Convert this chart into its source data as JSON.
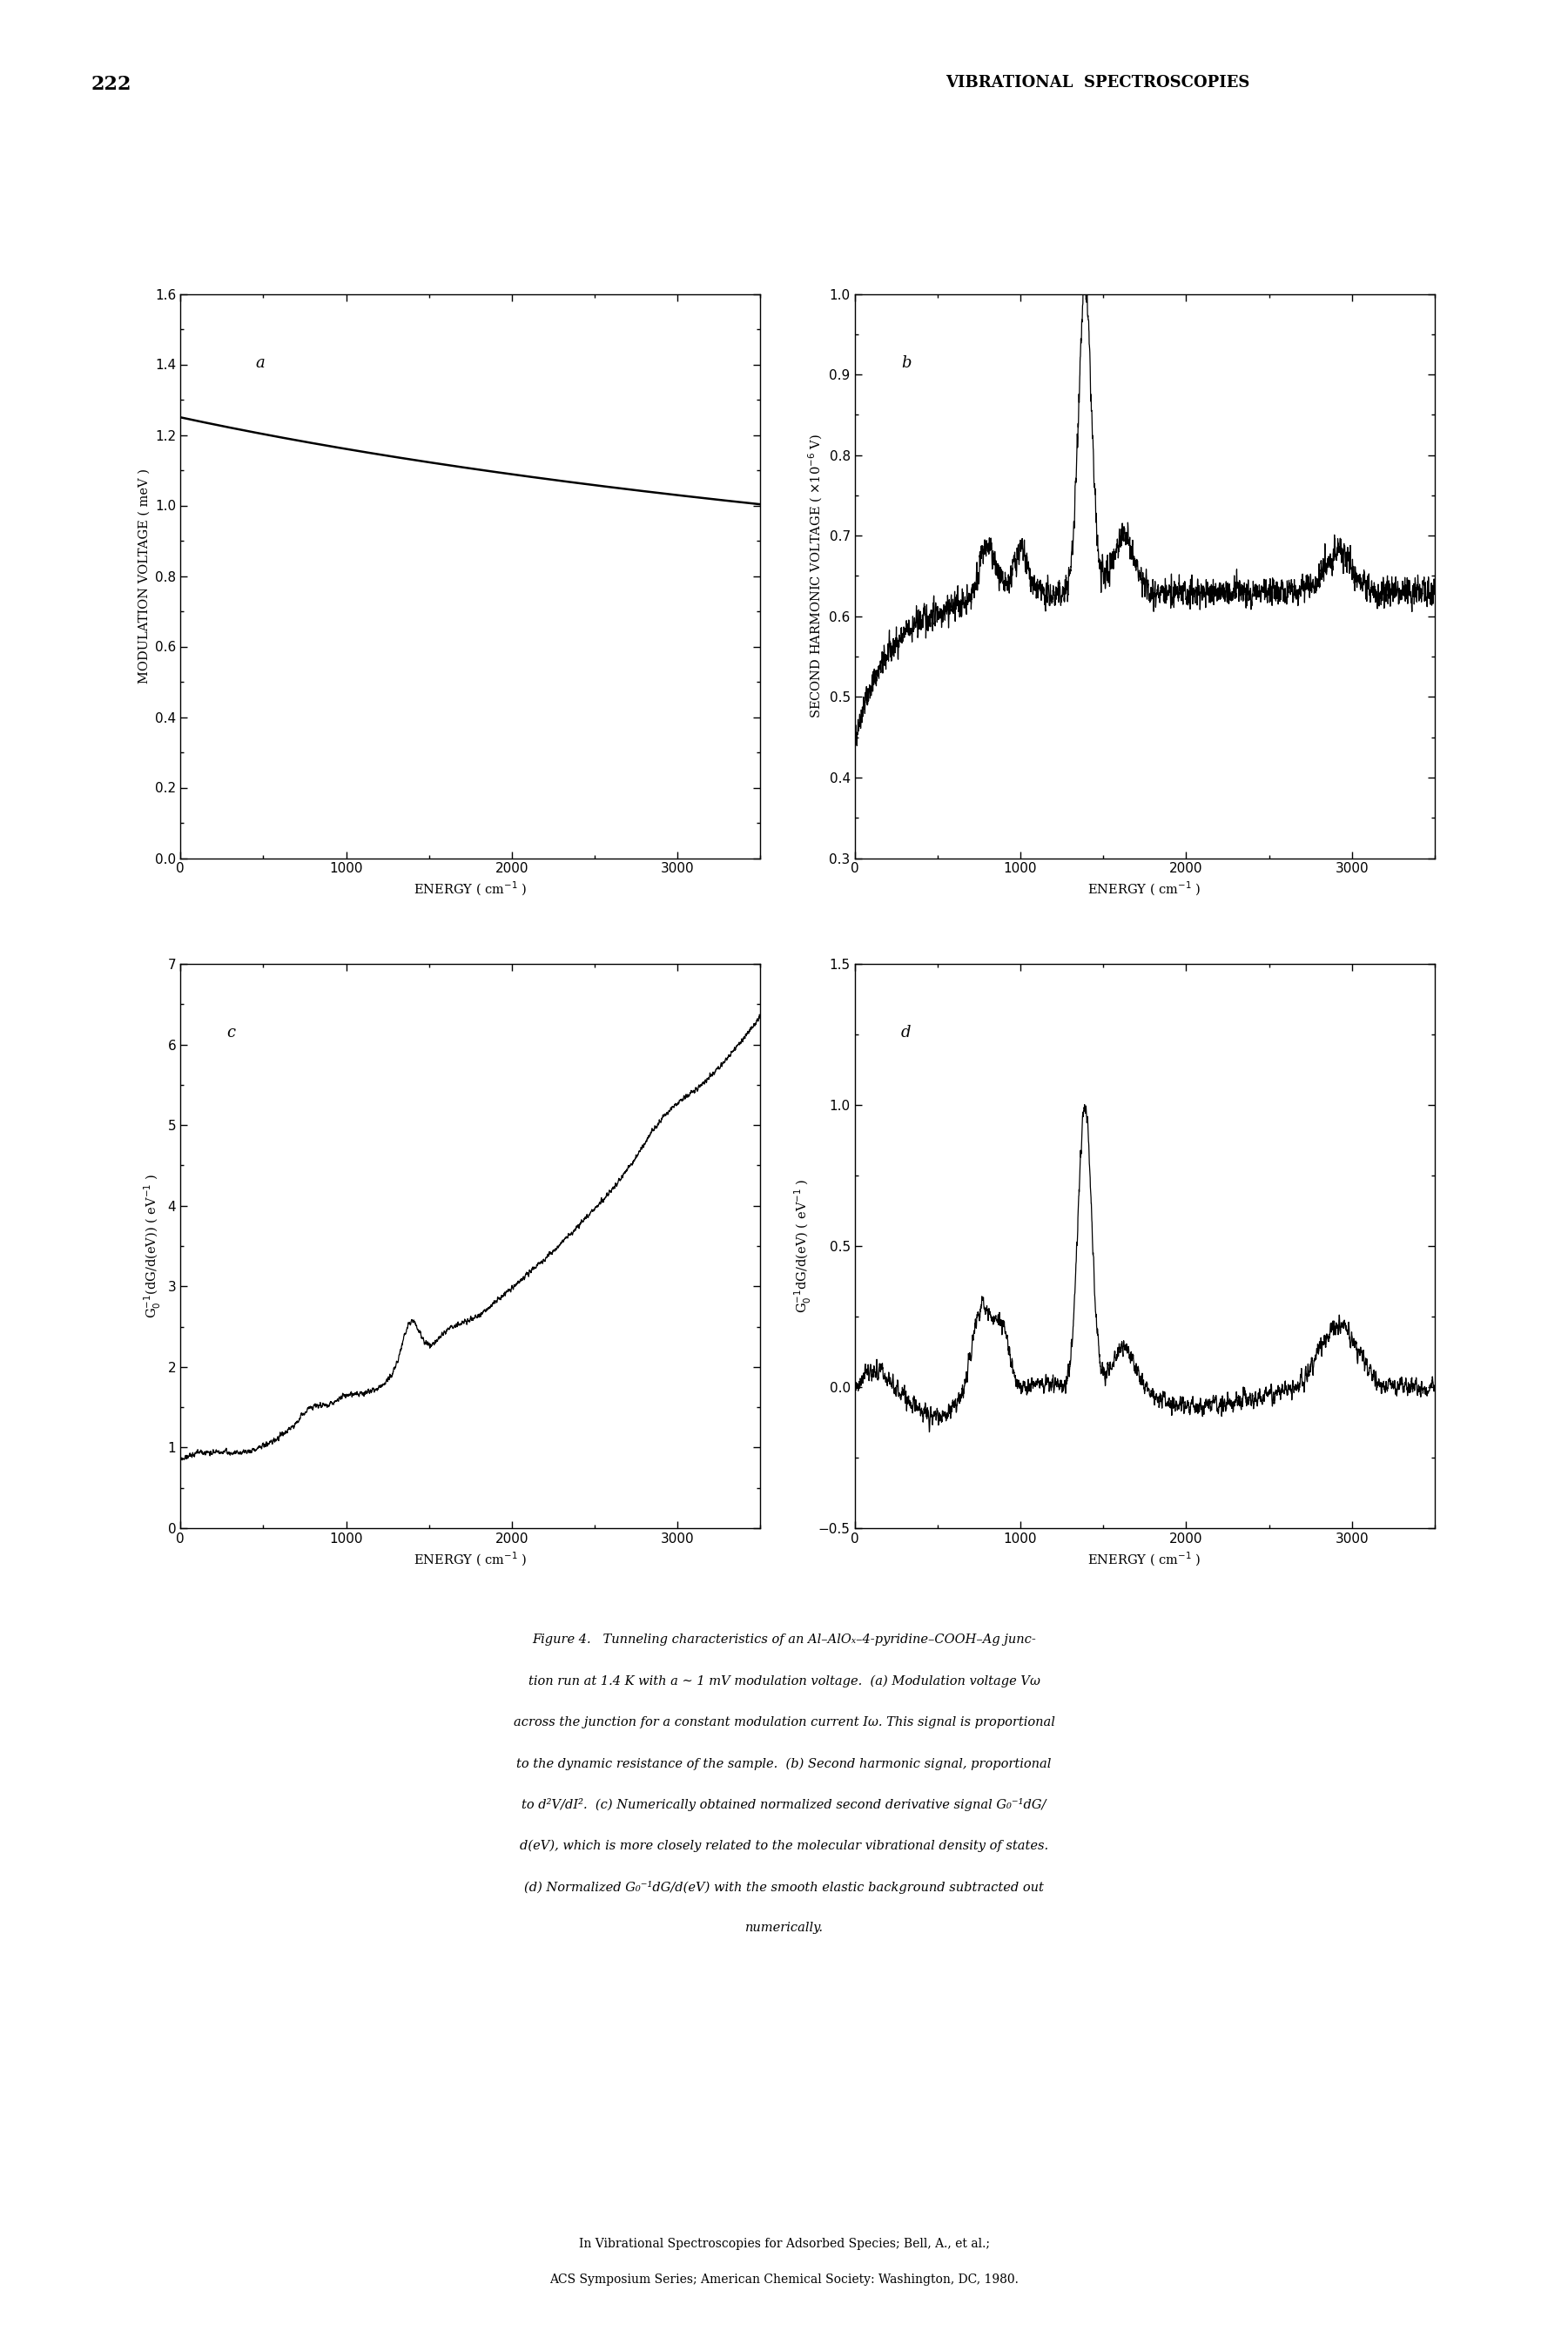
{
  "page_number": "222",
  "header_text": "VIBRATIONAL  SPECTROSCOPIES",
  "panel_a": {
    "xlim": [
      0,
      3500
    ],
    "ylim": [
      0.0,
      1.6
    ],
    "xticks": [
      0,
      1000,
      2000,
      3000
    ],
    "yticks": [
      0.0,
      0.2,
      0.4,
      0.6,
      0.8,
      1.0,
      1.2,
      1.4,
      1.6
    ],
    "label": "a"
  },
  "panel_b": {
    "xlim": [
      0,
      3500
    ],
    "ylim": [
      0.3,
      1.0
    ],
    "xticks": [
      0,
      1000,
      2000,
      3000
    ],
    "yticks": [
      0.3,
      0.4,
      0.5,
      0.6,
      0.7,
      0.8,
      0.9,
      1.0
    ],
    "label": "b"
  },
  "panel_c": {
    "xlim": [
      0,
      3500
    ],
    "ylim": [
      0,
      7
    ],
    "xticks": [
      0,
      1000,
      2000,
      3000
    ],
    "yticks": [
      0,
      1,
      2,
      3,
      4,
      5,
      6,
      7
    ],
    "label": "c"
  },
  "panel_d": {
    "xlim": [
      0,
      3500
    ],
    "ylim": [
      -0.5,
      1.5
    ],
    "xticks": [
      0,
      1000,
      2000,
      3000
    ],
    "yticks": [
      -0.5,
      0.0,
      0.5,
      1.0,
      1.5
    ],
    "label": "d"
  },
  "caption_lines": [
    "Figure 4.   Tunneling characteristics of an Al–AlOₓ–4-pyridine–COOH–Ag junc-",
    "tion run at 1.4 K with a ∼ 1 mV modulation voltage.  (a) Modulation voltage Vω",
    "across the junction for a constant modulation current Iω. This signal is proportional",
    "to the dynamic resistance of the sample.  (b) Second harmonic signal, proportional",
    "to d²V/dI².  (c) Numerically obtained normalized second derivative signal G₀⁻¹dG/",
    "d(eV), which is more closely related to the molecular vibrational density of states.",
    "(d) Normalized G₀⁻¹dG/d(eV) with the smooth elastic background subtracted out",
    "numerically."
  ],
  "footer_line1": "In Vibrational Spectroscopies for Adsorbed Species; Bell, A., et al.;",
  "footer_line2": "ACS Symposium Series; American Chemical Society: Washington, DC, 1980.",
  "line_color": "#000000",
  "background_color": "#ffffff"
}
